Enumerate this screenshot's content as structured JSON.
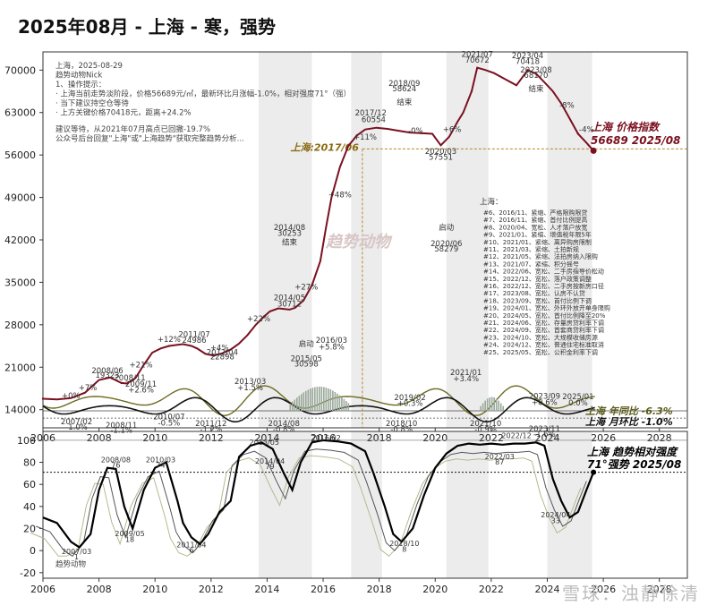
{
  "title": "2025年08月 - 上海 - 寒，强势",
  "watermark": "雪球：浊静徐清",
  "center_watermark": "趋势动物",
  "notes": [
    "上海，2025-08-29",
    "趋势动物Nick",
    "1、操作提示：",
    "· 上海当前走势淡阶段，价格56689元/㎡，最新环比月涨幅-1.0%，相对强度71°（强）",
    "· 当下建议持空仓等待",
    "· 上方关键价格70418元，距离+24.2%",
    "建议等待，从2021年07月高点已回撤-19.7%",
    "公众号后台回复\"上海\"或\"上海趋势\"获取完整趋势分析..."
  ],
  "policy_title": "上海：",
  "policy_notes": [
    "#6、2016/11、紧缩、严格限购限贷",
    "#7、2016/11、紧缩、首付比例提高",
    "#8、2020/04、宽松、人才落户放宽",
    "#9、2021/01、紧缩、增值税年限5年",
    "#10、2021/01、紧缩、离异购房限制",
    "#11、2021/03、紧缩、土拍新规",
    "#12、2021/05、紧缩、法拍房纳入限购",
    "#13、2021/07、紧缩、积分摇号",
    "#14、2022/06、宽松、二手房指导价松动",
    "#15、2022/12、宽松、落户政策调整",
    "#16、2022/12、宽松、二手房按新房口径",
    "#17、2023/08、宽松、认房不认贷",
    "#18、2023/09、宽松、首付比例下调",
    "#19、2024/01、宽松、外环外放开单身限购",
    "#20、2024/05、宽松、首付比例降至20%",
    "#21、2024/06、宽松、存量房贷利率下调",
    "#22、2024/09、宽松、首套商贷利率下调",
    "#23、2024/10、宽松、大规模收储房源",
    "#24、2024/12、宽松、普通住宅标准取消",
    "#25、2025/05、宽松、公积金利率下调"
  ],
  "chart_data": [
    {
      "type": "line",
      "title": "",
      "xlabel": "",
      "ylabel": "",
      "x_ticks": [
        "2006",
        "2008",
        "2010",
        "2012",
        "2014",
        "2016",
        "2018",
        "2020",
        "2022",
        "2024",
        "2026",
        "2028"
      ],
      "y_ticks": [
        "14000",
        "21000",
        "28000",
        "35000",
        "42000",
        "49000",
        "56000",
        "63000",
        "70000"
      ],
      "xlim": [
        2006,
        2029
      ],
      "ylim": [
        11000,
        73000
      ],
      "series": [
        {
          "name": "上海 价格指数",
          "color": "#7a1020",
          "x": [
            2006.0,
            2006.5,
            2007.0,
            2007.5,
            2008.0,
            2008.4,
            2008.8,
            2009.0,
            2009.3,
            2009.6,
            2009.9,
            2010.2,
            2010.5,
            2010.8,
            2011.0,
            2011.3,
            2011.5,
            2011.8,
            2012.1,
            2012.4,
            2012.7,
            2013.0,
            2013.3,
            2013.6,
            2013.9,
            2014.1,
            2014.4,
            2014.8,
            2015.0,
            2015.3,
            2015.6,
            2015.9,
            2016.1,
            2016.3,
            2016.6,
            2016.9,
            2017.2,
            2017.5,
            2017.9,
            2018.3,
            2018.7,
            2019.1,
            2019.5,
            2019.9,
            2020.2,
            2020.5,
            2020.8,
            2021.0,
            2021.3,
            2021.5,
            2021.8,
            2022.1,
            2022.5,
            2022.9,
            2023.3,
            2023.6,
            2023.9,
            2024.2,
            2024.5,
            2024.8,
            2025.1,
            2025.4,
            2025.65
          ],
          "values": [
            15800,
            15700,
            15900,
            16800,
            18900,
            19300,
            18400,
            18300,
            19200,
            21400,
            23400,
            24100,
            24500,
            24700,
            24800,
            24500,
            24100,
            23200,
            22900,
            23300,
            23900,
            24900,
            26300,
            28000,
            29400,
            30200,
            30700,
            30500,
            30800,
            32000,
            34500,
            38500,
            44000,
            49000,
            54000,
            57500,
            59200,
            60200,
            60500,
            60300,
            60000,
            59700,
            59600,
            59500,
            57600,
            59000,
            61500,
            63000,
            66500,
            70400,
            70000,
            69500,
            68500,
            67500,
            70000,
            69400,
            68000,
            66500,
            64500,
            62000,
            59500,
            58000,
            56700
          ]
        },
        {
          "name": "上海 年同比 -6.3%",
          "color": "#5a5a1a",
          "label": "上海 年同比 -6.3%"
        },
        {
          "name": "上海 月环比 -1.0%",
          "color": "#111111",
          "label": "上海 月环比 -1.0%"
        }
      ],
      "current_label": [
        "上海 价格指数",
        "56689 2025/08"
      ],
      "key_level_label": "上海:2017/06",
      "point_labels": [
        {
          "x": 2007.0,
          "y": 15900,
          "text": "+0%"
        },
        {
          "x": 2007.6,
          "y": 17200,
          "text": "+7%"
        },
        {
          "x": 2008.3,
          "y": 20000,
          "text": "2008/06"
        },
        {
          "x": 2008.3,
          "y": 19300,
          "text": "19323"
        },
        {
          "x": 2009.1,
          "y": 18800,
          "text": "2008/11"
        },
        {
          "x": 2009.5,
          "y": 21000,
          "text": "+21%"
        },
        {
          "x": 2011.4,
          "y": 26000,
          "text": "2011/07"
        },
        {
          "x": 2011.4,
          "y": 25000,
          "text": "24986"
        },
        {
          "x": 2010.5,
          "y": 25200,
          "text": "+12%"
        },
        {
          "x": 2012.3,
          "y": 23800,
          "text": "+4%"
        },
        {
          "x": 2012.4,
          "y": 23000,
          "text": "2012/04"
        },
        {
          "x": 2012.4,
          "y": 22300,
          "text": "22898"
        },
        {
          "x": 2013.7,
          "y": 28600,
          "text": "+22%"
        },
        {
          "x": 2014.8,
          "y": 32000,
          "text": "2014/05"
        },
        {
          "x": 2014.8,
          "y": 31000,
          "text": "30712"
        },
        {
          "x": 2015.4,
          "y": 33800,
          "text": "+27%"
        },
        {
          "x": 2016.6,
          "y": 49000,
          "text": "+48%"
        },
        {
          "x": 2017.7,
          "y": 62500,
          "text": "2017/12"
        },
        {
          "x": 2017.8,
          "y": 61400,
          "text": "60554"
        },
        {
          "x": 2017.5,
          "y": 58500,
          "text": "+11%"
        },
        {
          "x": 2019.3,
          "y": 59600,
          "text": "-0%"
        },
        {
          "x": 2020.6,
          "y": 59800,
          "text": "+6%"
        },
        {
          "x": 2020.2,
          "y": 56200,
          "text": "2020/03"
        },
        {
          "x": 2020.2,
          "y": 55200,
          "text": "57551"
        },
        {
          "x": 2021.5,
          "y": 72200,
          "text": "2021/07"
        },
        {
          "x": 2021.5,
          "y": 71200,
          "text": "70672"
        },
        {
          "x": 2023.3,
          "y": 72000,
          "text": "2023/04"
        },
        {
          "x": 2023.3,
          "y": 71000,
          "text": "70418"
        },
        {
          "x": 2024.7,
          "y": 63800,
          "text": "-8%"
        },
        {
          "x": 2025.4,
          "y": 59800,
          "text": "-4%"
        },
        {
          "x": 2014.8,
          "y": 43600,
          "text": "2014/08"
        },
        {
          "x": 2014.8,
          "y": 42700,
          "text": "30253"
        },
        {
          "x": 2014.8,
          "y": 41200,
          "text": "结束"
        },
        {
          "x": 2018.9,
          "y": 67400,
          "text": "2018/09"
        },
        {
          "x": 2018.9,
          "y": 66500,
          "text": "58624"
        },
        {
          "x": 2018.9,
          "y": 64300,
          "text": "结束"
        },
        {
          "x": 2023.6,
          "y": 69600,
          "text": "2023/08"
        },
        {
          "x": 2023.6,
          "y": 68700,
          "text": "68170"
        },
        {
          "x": 2023.6,
          "y": 66500,
          "text": "结束"
        },
        {
          "x": 2015.4,
          "y": 24400,
          "text": "启动"
        },
        {
          "x": 2015.4,
          "y": 22000,
          "text": "2015/05"
        },
        {
          "x": 2015.4,
          "y": 21100,
          "text": "30598"
        },
        {
          "x": 2020.4,
          "y": 41000,
          "text": "2020/06"
        },
        {
          "x": 2020.4,
          "y": 40100,
          "text": "58279"
        },
        {
          "x": 2020.4,
          "y": 43600,
          "text": "启动"
        },
        {
          "x": 2016.3,
          "y": 25000,
          "text": "2016/03"
        },
        {
          "x": 2016.3,
          "y": 23900,
          "text": "+5.8%"
        },
        {
          "x": 2021.1,
          "y": 19700,
          "text": "2021/01"
        },
        {
          "x": 2021.1,
          "y": 18700,
          "text": "+3.4%"
        },
        {
          "x": 2019.1,
          "y": 15600,
          "text": "2019/02"
        },
        {
          "x": 2019.1,
          "y": 14600,
          "text": "+0.3%"
        },
        {
          "x": 2023.9,
          "y": 15800,
          "text": "2023/09"
        },
        {
          "x": 2023.9,
          "y": 14800,
          "text": "+0.6%"
        },
        {
          "x": 2025.1,
          "y": 15700,
          "text": "2025/01"
        },
        {
          "x": 2025.1,
          "y": 14700,
          "text": "0.0%"
        },
        {
          "x": 2009.5,
          "y": 17800,
          "text": "2009/11"
        },
        {
          "x": 2009.5,
          "y": 16800,
          "text": "+2.6%"
        },
        {
          "x": 2013.4,
          "y": 18200,
          "text": "2013/03"
        },
        {
          "x": 2013.4,
          "y": 17200,
          "text": "+1.5%"
        },
        {
          "x": 2007.2,
          "y": 11600,
          "text": "2007/02"
        },
        {
          "x": 2007.2,
          "y": 10700,
          "text": "-1.0%"
        },
        {
          "x": 2010.5,
          "y": 12400,
          "text": "2010/07"
        },
        {
          "x": 2010.5,
          "y": 11400,
          "text": "-0.5%"
        },
        {
          "x": 2012.0,
          "y": 11300,
          "text": "2011/12"
        },
        {
          "x": 2012.0,
          "y": 10300,
          "text": "-1.2%"
        },
        {
          "x": 2008.8,
          "y": 11000,
          "text": "2008/11"
        },
        {
          "x": 2008.8,
          "y": 10200,
          "text": "-1.1%"
        },
        {
          "x": 2014.6,
          "y": 11300,
          "text": "2014/08"
        },
        {
          "x": 2014.6,
          "y": 10300,
          "text": "-0.8%"
        },
        {
          "x": 2018.8,
          "y": 11300,
          "text": "2018/10"
        },
        {
          "x": 2018.8,
          "y": 10300,
          "text": "-0.8%"
        },
        {
          "x": 2021.8,
          "y": 11300,
          "text": "2021/10"
        },
        {
          "x": 2021.8,
          "y": 10300,
          "text": "-0.9%"
        },
        {
          "x": 2023.9,
          "y": 10400,
          "text": "2023/11"
        },
        {
          "x": 2023.9,
          "y": 9500,
          "text": "-1.6%"
        }
      ],
      "shaded_ranges": [
        [
          2013.7,
          2015.6
        ],
        [
          2017.0,
          2018.1
        ],
        [
          2020.4,
          2021.9
        ],
        [
          2024.0,
          2025.6
        ]
      ]
    },
    {
      "type": "line",
      "title": "",
      "x_ticks": [
        "2006",
        "2008",
        "2010",
        "2012",
        "2014",
        "2016",
        "2018",
        "2020",
        "2022",
        "2024",
        "2026",
        "2028"
      ],
      "y_ticks": [
        "-20",
        "0",
        "20",
        "40",
        "60",
        "80",
        "100"
      ],
      "xlim": [
        2006,
        2029
      ],
      "ylim": [
        -25,
        108
      ],
      "reference_level": 71,
      "series": [
        {
          "name": "上海 趋势相对强度",
          "color": "#000000",
          "x": [
            2006.0,
            2006.5,
            2007.0,
            2007.3,
            2007.7,
            2008.0,
            2008.3,
            2008.6,
            2008.9,
            2009.2,
            2009.6,
            2010.0,
            2010.4,
            2010.8,
            2011.0,
            2011.3,
            2011.6,
            2011.9,
            2012.3,
            2012.7,
            2013.0,
            2013.4,
            2013.8,
            2014.2,
            2014.6,
            2014.9,
            2015.2,
            2015.6,
            2016.0,
            2016.5,
            2017.0,
            2017.5,
            2017.8,
            2018.2,
            2018.5,
            2018.8,
            2019.2,
            2019.6,
            2020.0,
            2020.4,
            2020.8,
            2021.2,
            2021.6,
            2022.0,
            2022.4,
            2022.8,
            2023.2,
            2023.6,
            2023.9,
            2024.2,
            2024.5,
            2024.8,
            2025.1,
            2025.4,
            2025.65
          ],
          "values": [
            30,
            25,
            8,
            3,
            15,
            55,
            75,
            74,
            40,
            20,
            55,
            75,
            80,
            45,
            25,
            12,
            6,
            15,
            35,
            45,
            85,
            95,
            98,
            92,
            70,
            55,
            80,
            98,
            100,
            99,
            97,
            90,
            70,
            40,
            15,
            8,
            20,
            50,
            75,
            88,
            95,
            97,
            96,
            97,
            96,
            97,
            97,
            98,
            95,
            65,
            45,
            30,
            35,
            55,
            71
          ]
        }
      ],
      "current_label": [
        "上海 趋势相对强度",
        "71°强势 2025/08"
      ],
      "point_labels": [
        {
          "x": 2007.2,
          "y": -3,
          "text": "2007/03"
        },
        {
          "x": 2007.2,
          "y": -8,
          "text": "1"
        },
        {
          "x": 2008.6,
          "y": 80,
          "text": "2008/08"
        },
        {
          "x": 2008.6,
          "y": 75,
          "text": "76"
        },
        {
          "x": 2009.1,
          "y": 13,
          "text": "2009/05"
        },
        {
          "x": 2009.1,
          "y": 8,
          "text": "18"
        },
        {
          "x": 2010.2,
          "y": 80,
          "text": "2010/03"
        },
        {
          "x": 2010.2,
          "y": 75,
          "text": "74"
        },
        {
          "x": 2011.3,
          "y": 3,
          "text": "2011/04"
        },
        {
          "x": 2011.3,
          "y": -2,
          "text": "6"
        },
        {
          "x": 2013.9,
          "y": 96,
          "text": "2013/05"
        },
        {
          "x": 2014.1,
          "y": 79,
          "text": "2014/04"
        },
        {
          "x": 2014.1,
          "y": 74,
          "text": "79"
        },
        {
          "x": 2016.1,
          "y": 100,
          "text": "2016/02"
        },
        {
          "x": 2018.9,
          "y": 4,
          "text": "2018/10"
        },
        {
          "x": 2018.9,
          "y": -1,
          "text": "8"
        },
        {
          "x": 2022.3,
          "y": 83,
          "text": "2022/03"
        },
        {
          "x": 2022.3,
          "y": 78,
          "text": "87"
        },
        {
          "x": 2022.9,
          "y": 102,
          "text": "2022/12"
        },
        {
          "x": 2024.3,
          "y": 30,
          "text": "2024/04"
        },
        {
          "x": 2024.3,
          "y": 25,
          "text": "33"
        }
      ],
      "shaded_ranges": [
        [
          2013.7,
          2015.6
        ],
        [
          2017.0,
          2018.1
        ],
        [
          2020.4,
          2021.9
        ],
        [
          2024.0,
          2025.6
        ]
      ]
    }
  ],
  "bottom_left_tag": "趋势动物"
}
